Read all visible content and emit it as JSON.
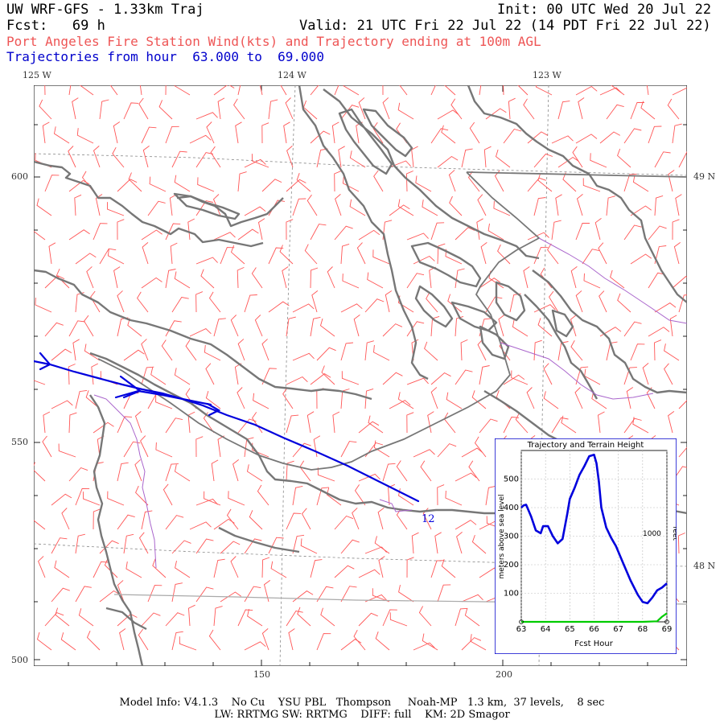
{
  "header": {
    "model_title": "UW WRF-GFS - 1.33km Traj",
    "init_time": "Init: 00 UTC Wed 20 Jul 22",
    "forecast_label": "Fcst:   69 h",
    "valid_time": "Valid: 21 UTC Fri 22 Jul 22 (14 PDT Fri 22 Jul 22)",
    "product_title": "Port Angeles Fire Station Wind(kts) and Trajectory ending at 100m AGL",
    "trajectory_range": "Trajectories from hour  63.000 to  69.000"
  },
  "map": {
    "longitude_labels": [
      "125 W",
      "124 W",
      "123 W"
    ],
    "latitude_labels": [
      "49 N",
      "48 N"
    ],
    "y_grid_labels": [
      "600",
      "550",
      "500"
    ],
    "x_grid_labels": [
      "150",
      "200"
    ],
    "trajectory_end_label": "12",
    "colors": {
      "coastline": "#777777",
      "wind_barb": "#ff5555",
      "trajectory": "#0000dd",
      "border": "#aa66cc",
      "grid": "#777777"
    }
  },
  "inset": {
    "title": "Trajectory and Terrain Height",
    "ylabel_left": "meters above sea level",
    "ylabel_right": "feet",
    "right_tick_label": "1000",
    "xlabel": "Fcst Hour"
  },
  "chart_data": {
    "type": "line",
    "title": "Trajectory and Terrain Height",
    "xlabel": "Fcst Hour",
    "ylabel": "meters above sea level",
    "xlim": [
      63,
      69
    ],
    "ylim": [
      0,
      600
    ],
    "x_ticks": [
      "63",
      "64",
      "65",
      "66",
      "67",
      "68",
      "69"
    ],
    "y_ticks": [
      "100",
      "200",
      "300",
      "400",
      "500"
    ],
    "grid": true,
    "series": [
      {
        "color": "#0000dd",
        "x": [
          63.0,
          63.1,
          63.2,
          63.4,
          63.6,
          63.8,
          63.9,
          64.1,
          64.3,
          64.5,
          64.7,
          64.9,
          65.0,
          65.2,
          65.4,
          65.6,
          65.8,
          66.0,
          66.1,
          66.2,
          66.3,
          66.5,
          66.7,
          66.9,
          67.2,
          67.5,
          67.8,
          68.0,
          68.2,
          68.4,
          68.6,
          68.8,
          69.0
        ],
        "y": [
          400,
          408,
          410,
          370,
          320,
          310,
          335,
          335,
          300,
          275,
          290,
          380,
          430,
          470,
          515,
          545,
          580,
          585,
          555,
          490,
          400,
          330,
          295,
          265,
          205,
          145,
          95,
          70,
          65,
          85,
          110,
          120,
          135
        ]
      },
      {
        "color": "#00cc00",
        "x": [
          63.0,
          64.0,
          65.0,
          66.0,
          67.0,
          68.0,
          68.6,
          68.8,
          69.0
        ],
        "y": [
          0,
          0,
          0,
          0,
          0,
          0,
          2,
          18,
          30
        ]
      }
    ]
  },
  "footer": {
    "line1": "Model Info: V4.1.3    No Cu    YSU PBL   Thompson     Noah-MP   1.3 km,  37 levels,    8 sec",
    "line2": "LW: RRTMG SW: RRTMG    DIFF: full    KM: 2D Smagor"
  }
}
